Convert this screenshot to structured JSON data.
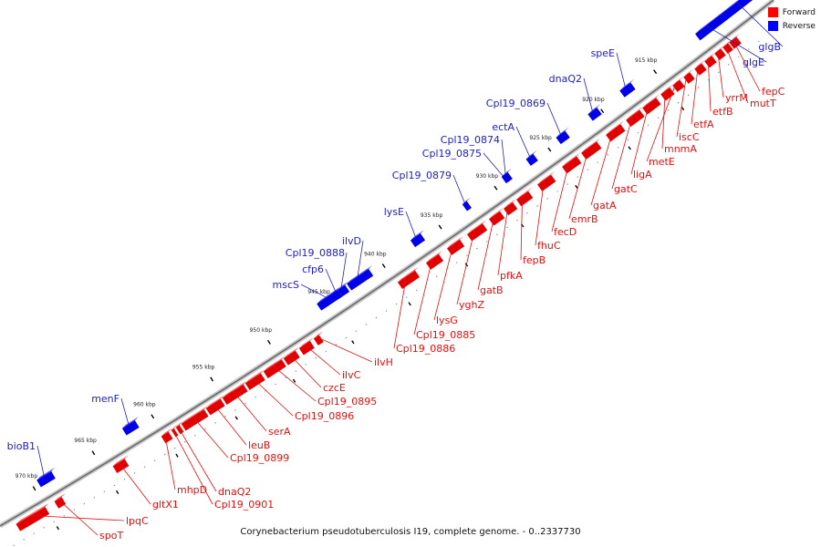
{
  "legend": {
    "forward_label": "Forward",
    "reverse_label": "Reverse",
    "forward_color": "#ff0000",
    "reverse_color": "#0000ff"
  },
  "caption": "Corynebacterium pseudotuberculosis I19, complete genome. - 0..2337730",
  "kbp_ticks": [
    "915 kbp",
    "920 kbp",
    "925 kbp",
    "930 kbp",
    "935 kbp",
    "940 kbp",
    "945 kbp",
    "950 kbp",
    "955 kbp",
    "960 kbp",
    "965 kbp",
    "970 kbp"
  ],
  "forward_genes": [
    "fepC",
    "mutT",
    "yrrM",
    "etfB",
    "etfA",
    "iscC",
    "metE",
    "mnmA",
    "ligA",
    "gatC",
    "gatA",
    "emrB",
    "fecD",
    "fhuC",
    "fepB",
    "pfkA",
    "gatB",
    "yghZ",
    "lysG",
    "Cpl19_0885",
    "Cpl19_0886",
    "ilvH",
    "ilvC",
    "czcE",
    "Cpl19_0895",
    "Cpl19_0896",
    "serA",
    "leuB",
    "Cpl19_0899",
    "dnaQ2",
    "Cpl19_0901",
    "mhpD",
    "gltX1",
    "lpqC",
    "spoT"
  ],
  "reverse_genes": [
    "glgB",
    "glgE",
    "speE",
    "dnaQ2",
    "Cpl19_0869",
    "ectA",
    "Cpl19_0874",
    "Cpl19_0875",
    "Cpl19_0879",
    "lysE",
    "ilvD",
    "Cpl19_0888",
    "cfp6",
    "mscS",
    "menF",
    "bioB1"
  ]
}
